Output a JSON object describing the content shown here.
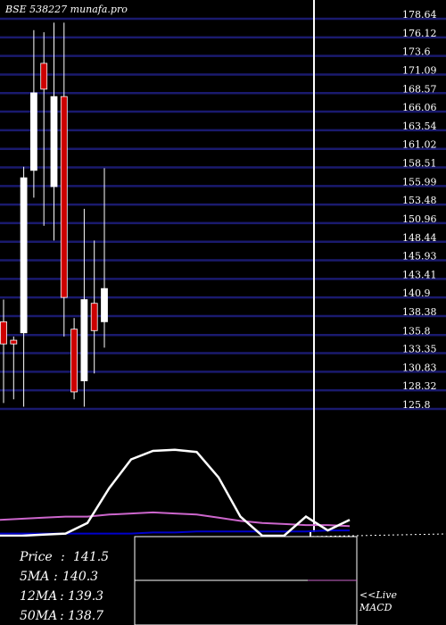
{
  "watermark": "BSE 538227 munafa.pro",
  "chart_data": {
    "type": "candlestick",
    "price_axis": {
      "ticks": [
        "178.64",
        "176.12",
        "173.6",
        "171.09",
        "168.57",
        "166.06",
        "163.54",
        "161.02",
        "158.51",
        "155.99",
        "153.48",
        "150.96",
        "148.44",
        "145.93",
        "143.41",
        "140.9",
        "138.38",
        "135.8",
        "133.35",
        "130.83",
        "128.32",
        "125.8"
      ],
      "range": [
        124.5,
        179.9
      ]
    },
    "candles": [
      {
        "open": 137.0,
        "close": 134.0,
        "high": 140.0,
        "low": 126.0,
        "color": "red"
      },
      {
        "open": 134.5,
        "close": 134.0,
        "high": 135.0,
        "low": 126.5,
        "color": "red"
      },
      {
        "open": 135.5,
        "close": 156.5,
        "high": 158.0,
        "low": 125.5,
        "color": "white"
      },
      {
        "open": 157.5,
        "close": 168.0,
        "high": 176.5,
        "low": 153.8,
        "color": "white"
      },
      {
        "open": 172.0,
        "close": 168.5,
        "high": 176.2,
        "low": 150.0,
        "color": "red"
      },
      {
        "open": 155.3,
        "close": 167.5,
        "high": 177.5,
        "low": 148.0,
        "color": "white"
      },
      {
        "open": 167.5,
        "close": 140.3,
        "high": 177.5,
        "low": 135.0,
        "color": "red"
      },
      {
        "open": 136.0,
        "close": 127.5,
        "high": 137.5,
        "low": 126.5,
        "color": "red"
      },
      {
        "open": 129.0,
        "close": 140.0,
        "high": 152.3,
        "low": 125.5,
        "color": "white"
      },
      {
        "open": 139.5,
        "close": 135.8,
        "high": 148.0,
        "low": 130.0,
        "color": "red"
      },
      {
        "open": 137.0,
        "close": 141.5,
        "high": 157.8,
        "low": 133.5,
        "color": "white"
      }
    ],
    "macd": {
      "line": [
        0,
        0,
        1,
        2,
        12,
        45,
        72,
        80,
        81,
        79,
        55,
        18,
        0,
        0,
        18,
        5,
        15
      ],
      "signal": [
        15,
        16,
        17,
        18,
        18,
        20,
        21,
        22,
        21,
        20,
        17,
        14,
        12,
        11,
        10,
        10,
        9
      ],
      "zero_line": [
        2,
        2,
        2,
        2,
        2,
        2,
        2,
        3,
        3,
        4,
        4,
        4,
        4,
        4,
        4,
        5,
        5
      ]
    }
  },
  "info": {
    "price_label": "Price",
    "price_value": "141.5",
    "ma5_label": "5MA",
    "ma5_value": "140.3",
    "ma12_label": "12MA",
    "ma12_value": "139.3",
    "ma50_label": "50MA",
    "ma50_value": "138.7"
  },
  "macd_label": {
    "line1": "<<Live",
    "line2": "MACD"
  },
  "colors": {
    "background": "#000000",
    "grid": "#1a1a6e",
    "bull": "#ffffff",
    "bear": "#cc0000",
    "macd_line": "#ffffff",
    "signal_line": "#cc66cc",
    "zero_line": "#0000cc"
  }
}
